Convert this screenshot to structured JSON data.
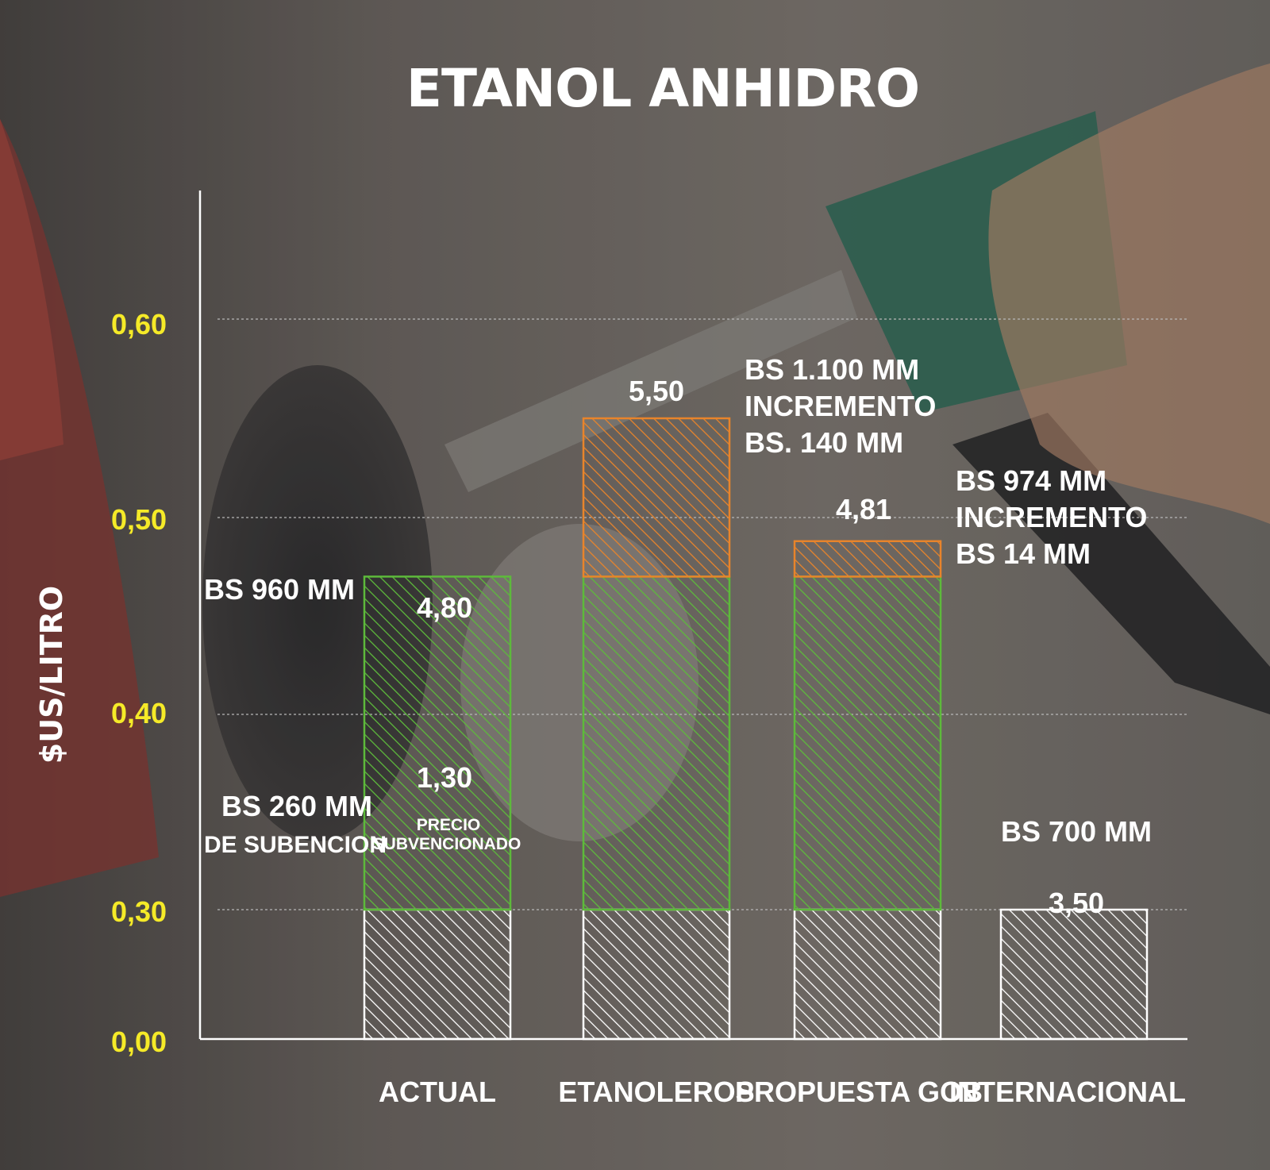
{
  "colors": {
    "ytick": "#f5ea28",
    "green": "#5dba3b",
    "orange": "#e8842b",
    "white": "#ffffff"
  },
  "chart_data": {
    "type": "bar",
    "title": "ETANOL ANHIDRO",
    "ylabel": "$US/LITRO",
    "xlabel": "",
    "yticks": [
      "0,00",
      "0,30",
      "0,40",
      "0,50",
      "0,60"
    ],
    "grid": true,
    "categories": [
      "ACTUAL",
      "ETANOLEROS",
      "PROPUESTA GOB",
      "INTERNACIONAL"
    ],
    "series": [
      {
        "color": "#ffffff",
        "values": [
          0.3,
          0.3,
          0.3,
          0.3
        ]
      },
      {
        "color": "#5dba3b",
        "values": [
          0.17,
          0.17,
          0.17,
          0
        ]
      },
      {
        "color": "#e8842b",
        "values": [
          0,
          0.08,
          0.018,
          0
        ]
      }
    ],
    "data_labels": {
      "actual_top": "4,80",
      "actual_mid": "1,30",
      "actual_precio_1": "PRECIO",
      "actual_precio_2": "SUBVENCIONADO",
      "actual_bs_top": "BS 960 MM",
      "actual_bs_sub_1": "BS 260 MM",
      "actual_bs_sub_2": "DE SUBENCION",
      "etanoleros_top": "5,50",
      "etanoleros_bs_1": "BS 1.100 MM",
      "etanoleros_bs_2": "INCREMENTO",
      "etanoleros_bs_3": "BS. 140 MM",
      "propuesta_top": "4,81",
      "propuesta_bs_1": "BS 974 MM",
      "propuesta_bs_2": "INCREMENTO",
      "propuesta_bs_3": "BS 14 MM",
      "internacional_top": "BS 700 MM",
      "internacional_inner": "3,50"
    }
  }
}
